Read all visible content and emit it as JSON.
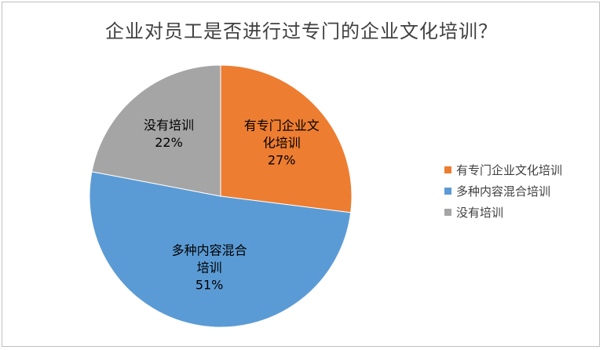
{
  "chart_data": {
    "type": "pie",
    "title": "企业对员工是否进行过专门的企业文化培训？",
    "categories": [
      "有专门企业文化培训",
      "多种内容混合培训",
      "没有培训"
    ],
    "values": [
      27,
      51,
      22
    ],
    "value_labels": [
      "27%",
      "51%",
      "22%"
    ],
    "slice_label_lines": [
      [
        "有专门企业文",
        "化培训"
      ],
      [
        "多种内容混合",
        "培训"
      ],
      [
        "没有培训"
      ]
    ],
    "colors": [
      "#ED7D31",
      "#5B9BD5",
      "#A5A5A5"
    ],
    "legend_position": "right"
  }
}
